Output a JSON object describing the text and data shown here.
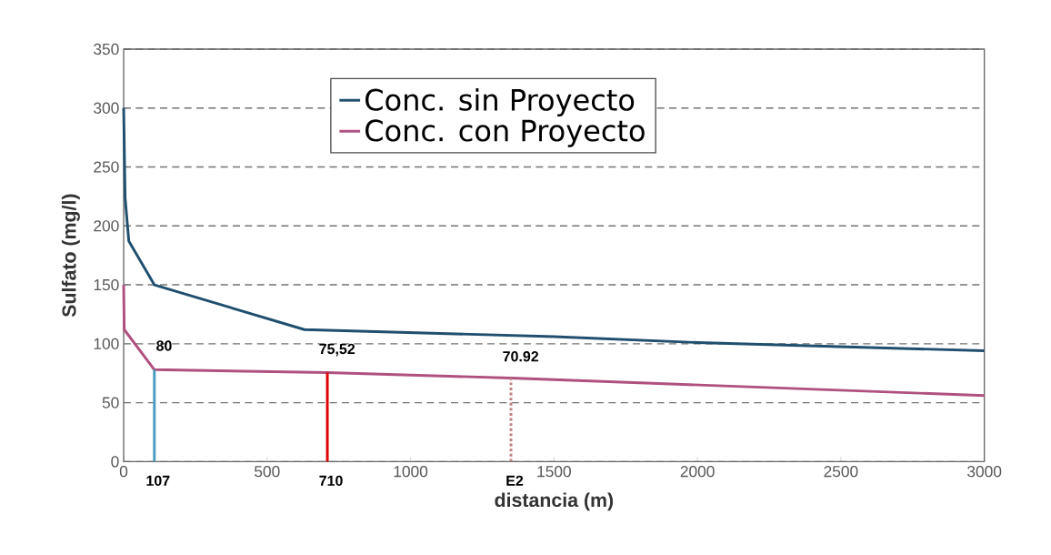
{
  "chart_data": {
    "type": "line",
    "xlabel": "distancia (m)",
    "ylabel": "Sulfato (mg/l)",
    "xlim": [
      0,
      3000
    ],
    "xticks": [
      0,
      500,
      1000,
      1500,
      2000,
      2500,
      3000
    ],
    "ylim": [
      0,
      350
    ],
    "yticks": [
      0,
      50,
      100,
      150,
      200,
      250,
      300,
      350
    ],
    "grid": "y",
    "legend": "top",
    "series": [
      {
        "name": "Conc. sin Proyecto",
        "color": "#1f4e6e",
        "x": [
          0,
          5,
          18,
          107,
          630,
          1500,
          2000,
          3000
        ],
        "values": [
          300,
          224,
          187,
          150,
          112,
          106,
          101,
          94
        ]
      },
      {
        "name": "Conc. con Proyecto",
        "color": "#b0507f",
        "x": [
          0,
          2,
          107,
          710,
          1350,
          3000
        ],
        "values": [
          150,
          112,
          78,
          75.52,
          70.92,
          56
        ]
      },
      {
        "color": "#4a9cc0",
        "x": [
          107,
          107
        ],
        "values": [
          78,
          0
        ]
      },
      {
        "color": "#e00000",
        "x": [
          710,
          710
        ],
        "values": [
          0,
          75.52
        ]
      },
      {
        "color": "#c08080",
        "line_style": "dotted",
        "x": [
          1350,
          1350
        ],
        "values": [
          0,
          70.92
        ]
      }
    ],
    "annotations": [
      {
        "text": "80",
        "x": 107,
        "y": 80
      },
      {
        "text": "75,52",
        "x": 710,
        "y": 75.52
      },
      {
        "text": "70.92",
        "x": 1350,
        "y": 70.92
      },
      {
        "text": "107",
        "x": 107,
        "y": 0
      },
      {
        "text": "710",
        "x": 710,
        "y": 0
      },
      {
        "text": "E2",
        "x": 1350,
        "y": 0
      }
    ]
  }
}
